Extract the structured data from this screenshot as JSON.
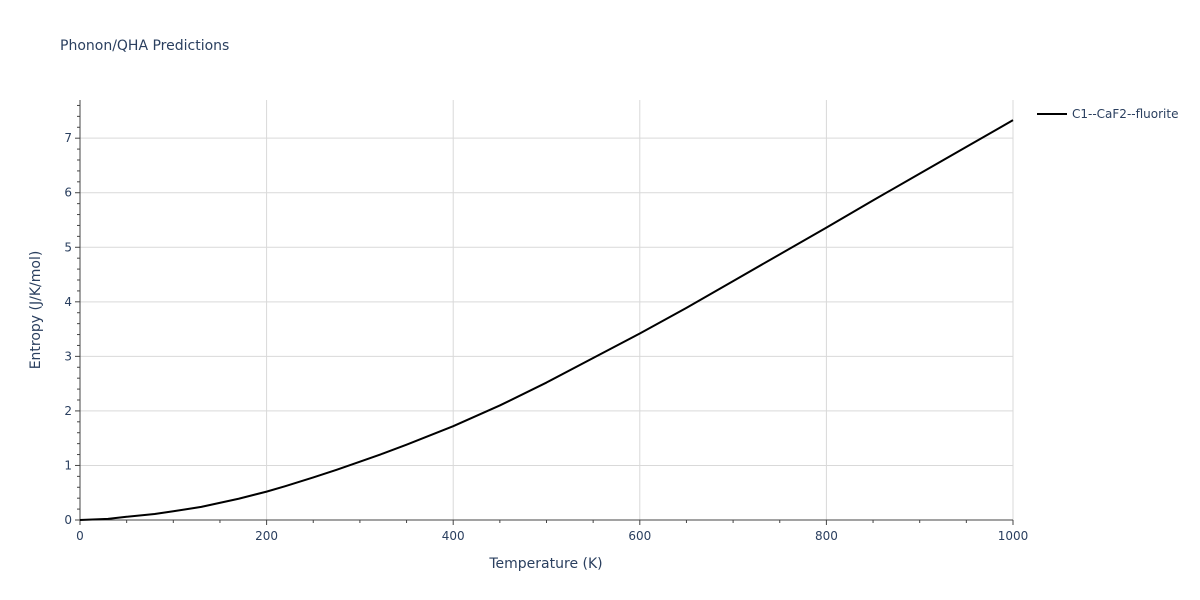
{
  "chart_data": {
    "type": "line",
    "title": "Phonon/QHA Predictions",
    "xlabel": "Temperature (K)",
    "ylabel": "Entropy (J/K/mol)",
    "xlim": [
      0,
      1000
    ],
    "ylim": [
      0,
      7.7
    ],
    "x_ticks": [
      0,
      200,
      400,
      600,
      800,
      1000
    ],
    "y_ticks": [
      0,
      1,
      2,
      3,
      4,
      5,
      6,
      7
    ],
    "grid": true,
    "legend_position": "top-right",
    "series": [
      {
        "name": "C1--CaF2--fluorite",
        "color": "#000000",
        "x": [
          0,
          30,
          50,
          80,
          100,
          130,
          170,
          200,
          220,
          250,
          275,
          300,
          325,
          350,
          375,
          400,
          450,
          500,
          550,
          600,
          650,
          700,
          750,
          800,
          850,
          900,
          950,
          1000
        ],
        "y": [
          0,
          0.02,
          0.06,
          0.11,
          0.16,
          0.24,
          0.39,
          0.52,
          0.62,
          0.78,
          0.92,
          1.07,
          1.22,
          1.38,
          1.55,
          1.72,
          2.1,
          2.52,
          2.97,
          3.42,
          3.89,
          4.38,
          4.87,
          5.36,
          5.86,
          6.35,
          6.84,
          7.33
        ]
      }
    ]
  }
}
